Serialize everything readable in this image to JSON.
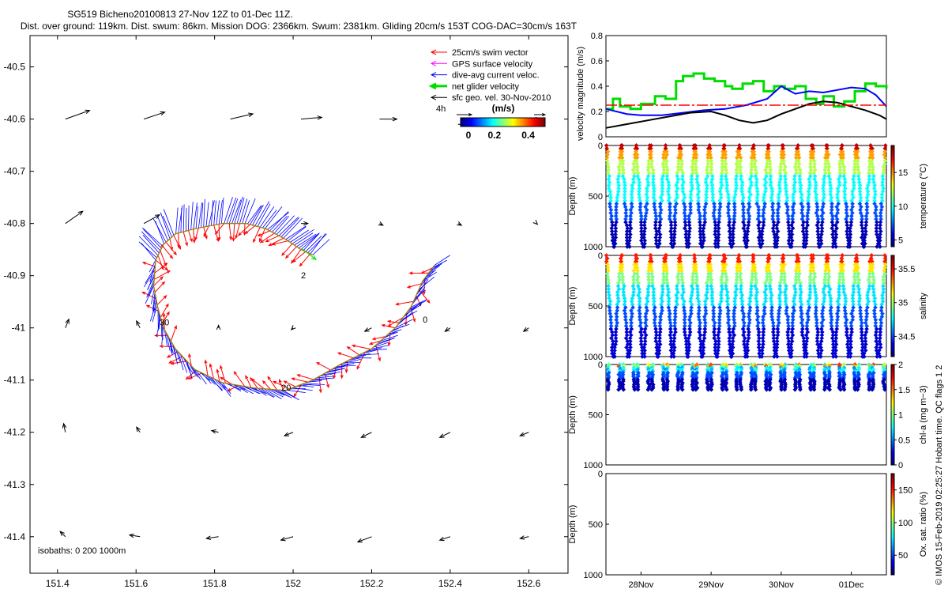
{
  "header": {
    "line1": "SG519 Bicheno20100813 27-Nov 12Z to 01-Dec 11Z.",
    "line2": "Dist. over ground: 119km. Dist. swum: 86km. Mission DOG: 2366km. Swum: 2381km. Gliding 20cm/s 153T COG-DAC=30cm/s 163T"
  },
  "side_note": "© IMOS 15-Feb-2019 02:25:27 Hobart time. QC flags 1  2",
  "colors": {
    "swim": "#ff0000",
    "gps": "#ff00ff",
    "dac": "#0000ff",
    "net": "#00dd00",
    "geo": "#000000",
    "track": "#a08000",
    "ref": "#ff0000"
  },
  "chart_data": [
    {
      "type": "quiver-map",
      "x_ticks": [
        "151.4",
        "151.6",
        "151.8",
        "152",
        "152.2",
        "152.4",
        "152.6"
      ],
      "x_tick_values": [
        151.4,
        151.6,
        151.8,
        152.0,
        152.2,
        152.4,
        152.6
      ],
      "y_ticks": [
        "-40.5",
        "-40.6",
        "-40.7",
        "-40.8",
        "-40.9",
        "-41",
        "-41.1",
        "-41.2",
        "-41.3",
        "-41.4"
      ],
      "y_tick_values": [
        -40.5,
        -40.6,
        -40.7,
        -40.8,
        -40.9,
        -41.0,
        -41.1,
        -41.2,
        -41.3,
        -41.4
      ],
      "xlim": [
        151.33,
        152.7
      ],
      "ylim": [
        -41.47,
        -40.44
      ],
      "legend": [
        {
          "label": "25cm/s swim vector",
          "color": "#ff0000"
        },
        {
          "label": "GPS surface velocity",
          "color": "#ff00ff"
        },
        {
          "label": "dive-avg current veloc.",
          "color": "#0000ff"
        },
        {
          "label": "net glider velocity",
          "color": "#00dd00"
        },
        {
          "label": "sfc geo. vel. 30-Nov-2010",
          "color": "#000000"
        }
      ],
      "colorbar": {
        "title": "(m/s)",
        "ticks": [
          "0",
          "0.2",
          "0.4"
        ],
        "tick_values": [
          0,
          0.2,
          0.4
        ],
        "range": [
          0,
          0.5
        ],
        "scale_label": "4h"
      },
      "isobaths_label": "isobaths: 0   200  1000m",
      "contour_labels": [
        {
          "text": "2",
          "lon": 152.02,
          "lat": -40.905
        },
        {
          "text": "30",
          "lon": 151.66,
          "lat": -40.995
        },
        {
          "text": "20",
          "lon": 151.97,
          "lat": -41.12
        },
        {
          "text": "0",
          "lon": 152.33,
          "lat": -40.99
        }
      ],
      "track": [
        [
          151.65,
          -40.87
        ],
        [
          151.67,
          -40.84
        ],
        [
          151.7,
          -40.82
        ],
        [
          151.75,
          -40.81
        ],
        [
          151.82,
          -40.8
        ],
        [
          151.88,
          -40.8
        ],
        [
          151.93,
          -40.81
        ],
        [
          151.98,
          -40.83
        ],
        [
          152.02,
          -40.85
        ],
        [
          152.05,
          -40.86
        ]
      ],
      "track_lower": [
        [
          151.65,
          -40.87
        ],
        [
          151.645,
          -40.92
        ],
        [
          151.655,
          -40.96
        ],
        [
          151.67,
          -41.0
        ],
        [
          151.7,
          -41.04
        ],
        [
          151.75,
          -41.08
        ],
        [
          151.82,
          -41.105
        ],
        [
          151.9,
          -41.115
        ],
        [
          151.98,
          -41.12
        ],
        [
          152.05,
          -41.1
        ],
        [
          152.12,
          -41.07
        ],
        [
          152.2,
          -41.04
        ],
        [
          152.26,
          -41.0
        ],
        [
          152.3,
          -40.96
        ],
        [
          152.33,
          -40.91
        ],
        [
          152.36,
          -40.88
        ]
      ],
      "geo_vectors": [
        [
          151.42,
          -40.6,
          0.14,
          0.05
        ],
        [
          151.62,
          -40.6,
          0.12,
          0.04
        ],
        [
          151.84,
          -40.6,
          0.13,
          0.03
        ],
        [
          152.02,
          -40.6,
          0.12,
          0.01
        ],
        [
          152.22,
          -40.6,
          0.1,
          0.0
        ],
        [
          152.42,
          -40.61,
          0.14,
          0.0
        ],
        [
          152.62,
          -40.6,
          0.02,
          0.0
        ],
        [
          151.42,
          -40.8,
          0.1,
          0.07
        ],
        [
          151.62,
          -40.8,
          0.09,
          0.05
        ],
        [
          152.02,
          -40.8,
          0.04,
          0.0
        ],
        [
          152.22,
          -40.8,
          0.02,
          -0.01
        ],
        [
          152.42,
          -40.8,
          0.02,
          -0.01
        ],
        [
          152.62,
          -40.8,
          0.005,
          -0.005
        ],
        [
          151.42,
          -41.0,
          0.02,
          0.05
        ],
        [
          151.61,
          -41.0,
          -0.02,
          0.04
        ],
        [
          151.81,
          -41.0,
          0.0,
          0.015
        ],
        [
          152.0,
          -41.0,
          -0.01,
          -0.01
        ],
        [
          152.2,
          -41.0,
          -0.04,
          -0.02
        ],
        [
          152.4,
          -41.0,
          -0.03,
          -0.02
        ],
        [
          152.6,
          -41.0,
          -0.03,
          -0.02
        ],
        [
          151.42,
          -41.2,
          -0.01,
          0.05
        ],
        [
          151.61,
          -41.2,
          -0.02,
          0.03
        ],
        [
          151.81,
          -41.2,
          -0.04,
          0.01
        ],
        [
          152.0,
          -41.2,
          -0.05,
          -0.02
        ],
        [
          152.2,
          -41.2,
          -0.06,
          -0.03
        ],
        [
          152.4,
          -41.2,
          -0.06,
          -0.03
        ],
        [
          152.6,
          -41.2,
          -0.05,
          -0.02
        ],
        [
          151.42,
          -41.4,
          -0.03,
          0.03
        ],
        [
          151.61,
          -41.4,
          -0.06,
          0.01
        ],
        [
          151.81,
          -41.4,
          -0.07,
          -0.01
        ],
        [
          152.0,
          -41.4,
          -0.07,
          -0.02
        ],
        [
          152.2,
          -41.4,
          -0.08,
          -0.03
        ],
        [
          152.4,
          -41.4,
          -0.06,
          -0.02
        ],
        [
          152.6,
          -41.4,
          -0.05,
          -0.01
        ]
      ]
    },
    {
      "type": "line",
      "ylabel": "velocity magnitude (m/s)",
      "ylim": [
        0,
        0.8
      ],
      "y_ticks": [
        "0",
        "0.2",
        "0.4",
        "0.6",
        "0.8"
      ],
      "y_tick_values": [
        0,
        0.2,
        0.4,
        0.6,
        0.8
      ],
      "xlim": [
        27.5,
        31.5
      ],
      "series": [
        {
          "name": "net glider velocity",
          "color": "#00dd00",
          "style": "step",
          "x": [
            27.5,
            27.6,
            27.7,
            27.85,
            28.0,
            28.2,
            28.35,
            28.5,
            28.6,
            28.75,
            28.9,
            29.05,
            29.2,
            29.3,
            29.45,
            29.6,
            29.75,
            29.9,
            30.05,
            30.2,
            30.35,
            30.5,
            30.6,
            30.75,
            30.9,
            31.05,
            31.2,
            31.35,
            31.5
          ],
          "y": [
            0.22,
            0.3,
            0.24,
            0.22,
            0.26,
            0.32,
            0.3,
            0.44,
            0.48,
            0.5,
            0.46,
            0.44,
            0.4,
            0.38,
            0.42,
            0.44,
            0.36,
            0.4,
            0.38,
            0.4,
            0.3,
            0.26,
            0.32,
            0.24,
            0.28,
            0.36,
            0.42,
            0.4,
            0.38
          ]
        },
        {
          "name": "dive-avg current",
          "color": "#0000ff",
          "x": [
            27.5,
            27.8,
            28.0,
            28.3,
            28.6,
            28.9,
            29.2,
            29.5,
            29.8,
            30.0,
            30.2,
            30.4,
            30.6,
            30.8,
            31.0,
            31.2,
            31.35,
            31.5
          ],
          "y": [
            0.22,
            0.18,
            0.17,
            0.17,
            0.19,
            0.21,
            0.22,
            0.25,
            0.3,
            0.4,
            0.34,
            0.36,
            0.35,
            0.37,
            0.39,
            0.38,
            0.33,
            0.24
          ]
        },
        {
          "name": "sfc geo. vel.",
          "color": "#000000",
          "x": [
            27.5,
            27.8,
            28.1,
            28.4,
            28.7,
            29.0,
            29.2,
            29.4,
            29.6,
            29.8,
            30.0,
            30.2,
            30.4,
            30.6,
            30.8,
            31.0,
            31.2,
            31.4,
            31.5
          ],
          "y": [
            0.07,
            0.1,
            0.13,
            0.16,
            0.19,
            0.2,
            0.17,
            0.13,
            0.11,
            0.13,
            0.18,
            0.22,
            0.26,
            0.28,
            0.27,
            0.24,
            0.21,
            0.17,
            0.14
          ]
        },
        {
          "name": "25cm/s reference",
          "color": "#ff0000",
          "style": "dashed",
          "x": [
            27.5,
            31.5
          ],
          "y": [
            0.25,
            0.25
          ]
        }
      ]
    },
    {
      "type": "scatter-section",
      "variable": "temperature",
      "ylabel": "Depth (m)",
      "ylim": [
        0,
        1000
      ],
      "y_ticks": [
        "0",
        "500",
        "1000"
      ],
      "y_tick_values": [
        0,
        500,
        1000
      ],
      "colorbar_label": "temperature (°C)",
      "colorbar_range": [
        4,
        19
      ],
      "colorbar_ticks": [
        "5",
        "10",
        "15"
      ],
      "colorbar_tick_values": [
        5,
        10,
        15
      ],
      "dives": 19,
      "max_depth": 1000
    },
    {
      "type": "scatter-section",
      "variable": "salinity",
      "ylabel": "Depth (m)",
      "ylim": [
        0,
        1000
      ],
      "y_ticks": [
        "0",
        "500",
        "1000"
      ],
      "y_tick_values": [
        0,
        500,
        1000
      ],
      "colorbar_label": "salinity",
      "colorbar_range": [
        34.2,
        35.7
      ],
      "colorbar_ticks": [
        "34.5",
        "35",
        "35.5"
      ],
      "colorbar_tick_values": [
        34.5,
        35,
        35.5
      ],
      "dives": 19,
      "max_depth": 1000
    },
    {
      "type": "scatter-section",
      "variable": "chl-a",
      "ylabel": "Depth (m)",
      "ylim": [
        0,
        1000
      ],
      "y_ticks": [
        "0",
        "500",
        "1000"
      ],
      "y_tick_values": [
        0,
        500,
        1000
      ],
      "colorbar_label": "chl-a (mg m−3)",
      "colorbar_range": [
        0,
        2
      ],
      "colorbar_ticks": [
        "0",
        "0.5",
        "1",
        "1.5",
        "2"
      ],
      "colorbar_tick_values": [
        0,
        0.5,
        1,
        1.5,
        2
      ],
      "dives": 19,
      "max_depth": 250
    },
    {
      "type": "scatter-section",
      "variable": "oxygen saturation",
      "ylabel": "Depth (m)",
      "ylim": [
        0,
        1000
      ],
      "y_ticks": [
        "0",
        "500",
        "1000"
      ],
      "y_tick_values": [
        0,
        500,
        1000
      ],
      "colorbar_label": "Ox. sat. ratio (%)",
      "colorbar_range": [
        20,
        175
      ],
      "colorbar_ticks": [
        "50",
        "100",
        "150"
      ],
      "colorbar_tick_values": [
        50,
        100,
        150
      ],
      "dives": 0,
      "max_depth": 0,
      "x_ticks": [
        "28Nov",
        "29Nov",
        "30Nov",
        "01Dec"
      ],
      "x_tick_values": [
        28,
        29,
        30,
        31
      ],
      "xlim": [
        27.5,
        31.5
      ]
    }
  ]
}
